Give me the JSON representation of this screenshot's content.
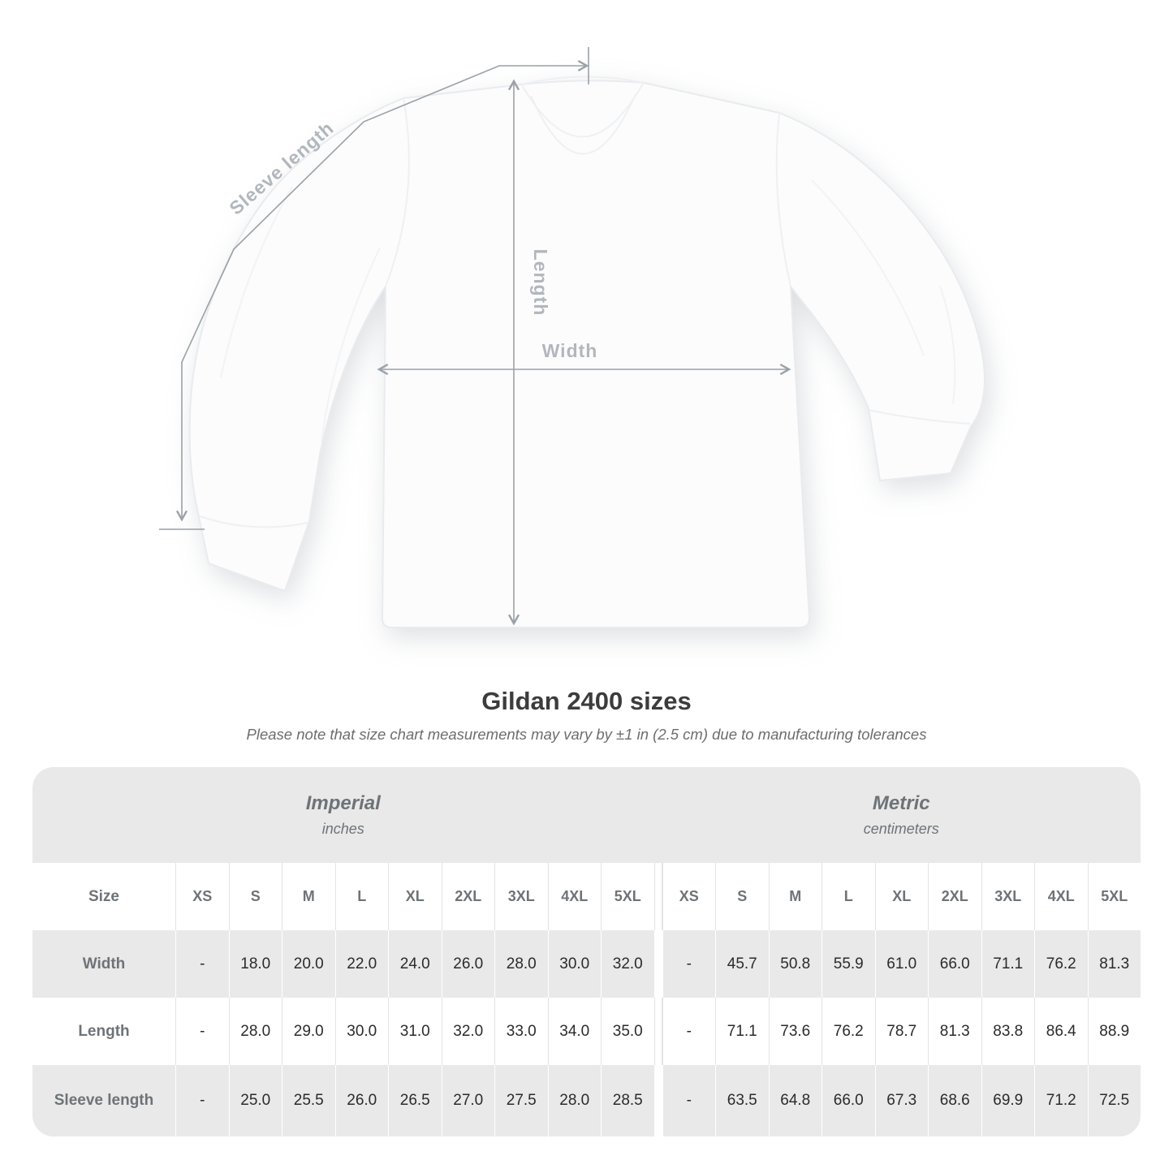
{
  "page": {
    "background": "#ffffff"
  },
  "diagram": {
    "labels": {
      "sleeve_length": "Sleeve length",
      "length": "Length",
      "width": "Width"
    },
    "line_color": "#9aa1a7",
    "label_color": "#b2b7bd"
  },
  "heading": {
    "title": "Gildan 2400 sizes",
    "subtitle": "Please note that size chart measurements may vary by ±1 in (2.5 cm) due to manufacturing tolerances"
  },
  "size_table": {
    "unit_groups": [
      {
        "name": "Imperial",
        "unit": "inches"
      },
      {
        "name": "Metric",
        "unit": "centimeters"
      }
    ],
    "size_label": "Size",
    "sizes": [
      "XS",
      "S",
      "M",
      "L",
      "XL",
      "2XL",
      "3XL",
      "4XL",
      "5XL"
    ],
    "rows": [
      {
        "label": "Width",
        "imperial": [
          "-",
          "18.0",
          "20.0",
          "22.0",
          "24.0",
          "26.0",
          "28.0",
          "30.0",
          "32.0"
        ],
        "metric": [
          "-",
          "45.7",
          "50.8",
          "55.9",
          "61.0",
          "66.0",
          "71.1",
          "76.2",
          "81.3"
        ]
      },
      {
        "label": "Length",
        "imperial": [
          "-",
          "28.0",
          "29.0",
          "30.0",
          "31.0",
          "32.0",
          "33.0",
          "34.0",
          "35.0"
        ],
        "metric": [
          "-",
          "71.1",
          "73.6",
          "76.2",
          "78.7",
          "81.3",
          "83.8",
          "86.4",
          "88.9"
        ]
      },
      {
        "label": "Sleeve length",
        "imperial": [
          "-",
          "25.0",
          "25.5",
          "26.0",
          "26.5",
          "27.0",
          "27.5",
          "28.0",
          "28.5"
        ],
        "metric": [
          "-",
          "63.5",
          "64.8",
          "66.0",
          "67.3",
          "68.6",
          "69.9",
          "71.2",
          "72.5"
        ]
      }
    ],
    "row_gray_color": "#e9e9e9",
    "header_text_color": "#6e7377",
    "value_text_color": "#2b2b2c"
  }
}
